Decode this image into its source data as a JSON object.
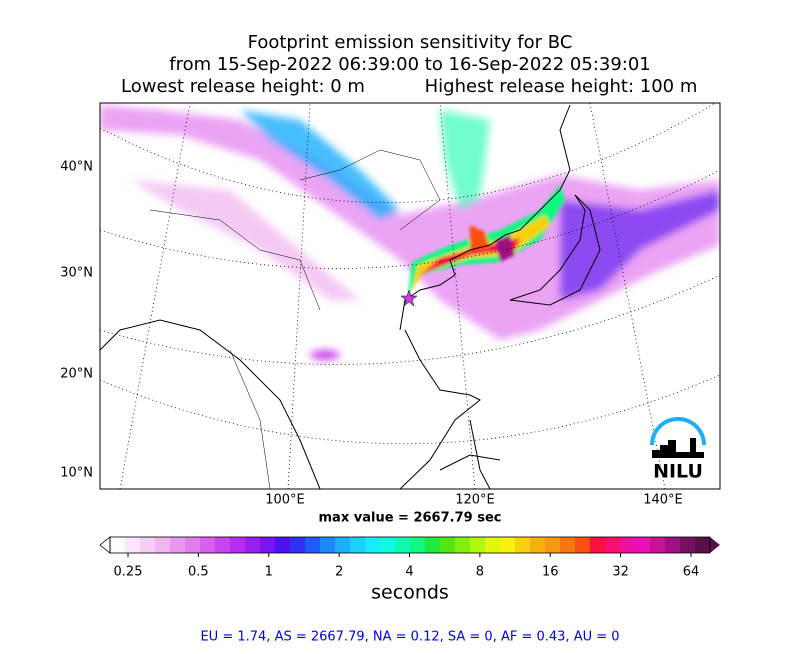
{
  "title": {
    "line1": "Footprint emission sensitivity for BC",
    "line2": "from 15-Sep-2022 06:39:00 to 16-Sep-2022 05:39:01",
    "left": "Lowest release height: 0 m",
    "right": "Highest release height: 100 m"
  },
  "map": {
    "lat_labels": [
      "40°N",
      "30°N",
      "20°N",
      "10°N"
    ],
    "lon_labels": [
      "100°E",
      "120°E",
      "140°E"
    ],
    "logo": "NILU"
  },
  "max_value": "max value = 2667.79 sec",
  "colorbar": {
    "ticks": [
      0.25,
      0.5,
      1,
      2,
      4,
      8,
      16,
      32,
      64
    ],
    "log_scale": true,
    "label": "seconds",
    "colors": [
      "#ffffff",
      "#fbe6fb",
      "#f5cdf5",
      "#f0b4f0",
      "#ea98ef",
      "#e27cef",
      "#d760ef",
      "#c944ef",
      "#b82cf0",
      "#9a1ef0",
      "#7a14f0",
      "#5010f0",
      "#3030f5",
      "#1c5cf8",
      "#1c88fa",
      "#1caefc",
      "#1cd0fc",
      "#18ecfc",
      "#10f8e0",
      "#10f8b0",
      "#10f880",
      "#20e840",
      "#50e810",
      "#80f010",
      "#b0f810",
      "#e0f810",
      "#f8f010",
      "#f8d010",
      "#f8b010",
      "#f89810",
      "#f87810",
      "#f85010",
      "#f81040",
      "#f81070",
      "#f010a0",
      "#e810b8",
      "#c81098",
      "#a01080",
      "#781060",
      "#581048"
    ]
  },
  "footer": "EU = 1.74,  AS = 2667.79,  NA = 0.12,  SA = 0,  AF = 0.43,  AU = 0"
}
